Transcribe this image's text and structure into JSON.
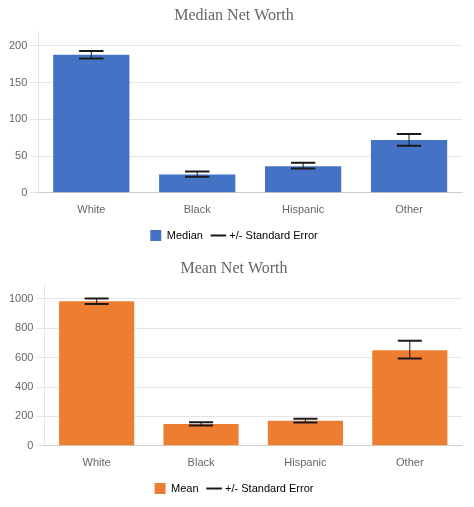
{
  "chart_data": [
    {
      "type": "bar",
      "title": "Median Net Worth",
      "categories": [
        "White",
        "Black",
        "Hispanic",
        "Other"
      ],
      "series": [
        {
          "name": "Median",
          "color": "#4472C4",
          "values": [
            188,
            25,
            36,
            72
          ]
        },
        {
          "name": "+/- Standard Error",
          "type": "errorbar",
          "color": "#1a1a1a",
          "error_upper": [
            5,
            4,
            5,
            8
          ],
          "error_lower": [
            5,
            3,
            3,
            8
          ]
        }
      ],
      "ylim": [
        0,
        220
      ],
      "yticks": [
        0,
        50,
        100,
        150,
        200
      ],
      "grid": true,
      "legend": "bottom"
    },
    {
      "type": "bar",
      "title": "Mean Net Worth",
      "categories": [
        "White",
        "Black",
        "Hispanic",
        "Other"
      ],
      "series": [
        {
          "name": "Mean",
          "color": "#ED7D31",
          "values": [
            984,
            148,
            170,
            650
          ]
        },
        {
          "name": "+/- Standard Error",
          "type": "errorbar",
          "color": "#1a1a1a",
          "error_upper": [
            18,
            12,
            14,
            65
          ],
          "error_lower": [
            18,
            10,
            12,
            55
          ]
        }
      ],
      "ylim": [
        0,
        1100
      ],
      "yticks": [
        0,
        200,
        400,
        600,
        800,
        1000
      ],
      "grid": true,
      "legend": "bottom"
    }
  ]
}
